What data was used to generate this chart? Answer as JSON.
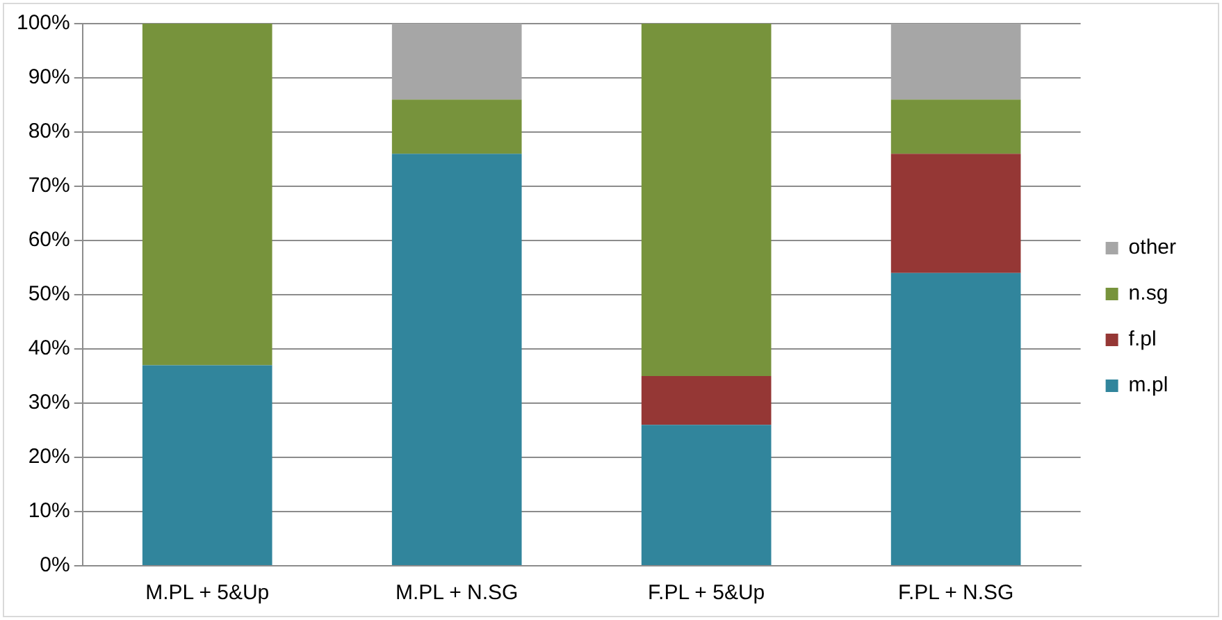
{
  "chart_data": {
    "type": "bar",
    "stacked": true,
    "categories": [
      "M.PL + 5&Up",
      "M.PL + N.SG",
      "F.PL + 5&Up",
      "F.PL + N.SG"
    ],
    "series": [
      {
        "name": "m.pl",
        "color": "#31859c",
        "values": [
          37,
          76,
          26,
          54
        ]
      },
      {
        "name": "f.pl",
        "color": "#953735",
        "values": [
          0,
          0,
          9,
          22
        ]
      },
      {
        "name": "n.sg",
        "color": "#77933c",
        "values": [
          63,
          10,
          65,
          10
        ]
      },
      {
        "name": "other",
        "color": "#a6a6a6",
        "values": [
          0,
          14,
          0,
          14
        ]
      }
    ],
    "ylim": [
      0,
      100
    ],
    "yticks": [
      {
        "value": 0,
        "label": "0%"
      },
      {
        "value": 10,
        "label": "10%"
      },
      {
        "value": 20,
        "label": "20%"
      },
      {
        "value": 30,
        "label": "30%"
      },
      {
        "value": 40,
        "label": "40%"
      },
      {
        "value": 50,
        "label": "50%"
      },
      {
        "value": 60,
        "label": "60%"
      },
      {
        "value": 70,
        "label": "70%"
      },
      {
        "value": 80,
        "label": "80%"
      },
      {
        "value": 90,
        "label": "90%"
      },
      {
        "value": 100,
        "label": "100%"
      }
    ],
    "grid": "y",
    "legend": "right"
  }
}
